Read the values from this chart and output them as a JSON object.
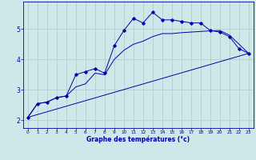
{
  "title": "",
  "xlabel": "Graphe des températures (°c)",
  "background_color": "#cce8e8",
  "grid_color": "#aacccc",
  "line_color": "#0000aa",
  "x_ticks": [
    0,
    1,
    2,
    3,
    4,
    5,
    6,
    7,
    8,
    9,
    10,
    11,
    12,
    13,
    14,
    15,
    16,
    17,
    18,
    19,
    20,
    21,
    22,
    23
  ],
  "y_ticks": [
    2,
    3,
    4,
    5
  ],
  "xlim": [
    -0.5,
    23.5
  ],
  "ylim": [
    1.75,
    5.9
  ],
  "curve1_x": [
    0,
    1,
    2,
    3,
    4,
    5,
    6,
    7,
    8,
    9,
    10,
    11,
    12,
    13,
    14,
    15,
    16,
    17,
    18,
    19,
    20,
    21,
    22,
    23
  ],
  "curve1_y": [
    2.1,
    2.55,
    2.6,
    2.75,
    2.8,
    3.5,
    3.6,
    3.7,
    3.55,
    4.45,
    4.95,
    5.35,
    5.2,
    5.55,
    5.3,
    5.3,
    5.25,
    5.2,
    5.2,
    4.95,
    4.9,
    4.75,
    4.35,
    4.2
  ],
  "curve2_x": [
    0,
    1,
    2,
    3,
    4,
    5,
    6,
    7,
    8,
    9,
    10,
    11,
    12,
    13,
    14,
    15,
    16,
    17,
    18,
    19,
    20,
    21,
    22,
    23
  ],
  "curve2_y": [
    2.1,
    2.55,
    2.6,
    2.75,
    2.8,
    3.1,
    3.2,
    3.55,
    3.5,
    4.0,
    4.3,
    4.5,
    4.6,
    4.75,
    4.85,
    4.85,
    4.88,
    4.9,
    4.92,
    4.94,
    4.95,
    4.8,
    4.5,
    4.2
  ],
  "curve3_x": [
    0,
    23
  ],
  "curve3_y": [
    2.1,
    4.2
  ]
}
